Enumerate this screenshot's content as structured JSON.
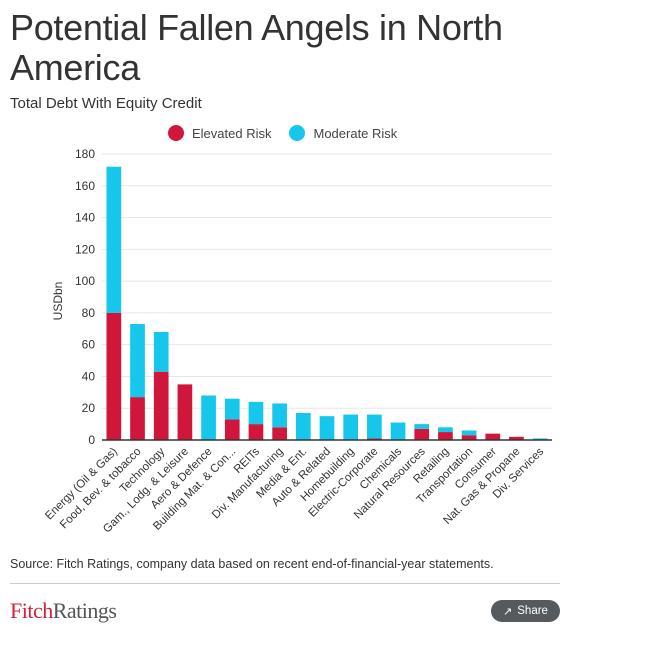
{
  "title": "Potential Fallen Angels in North America",
  "subtitle": "Total Debt With Equity Credit",
  "source": "Source: Fitch Ratings, company data based on recent end-of-financial-year statements.",
  "logo": {
    "brand": "Fitch",
    "suffix": "Ratings"
  },
  "share": {
    "label": "Share",
    "icon": "share-icon"
  },
  "colors": {
    "elevated": "#d0173b",
    "moderate": "#17c6eb",
    "axis": "#333333",
    "grid": "#e6e6e6",
    "text": "#333333"
  },
  "chart_data": {
    "type": "bar",
    "stacked": true,
    "ylabel": "USDbn",
    "ylim": [
      0,
      180
    ],
    "yticks": [
      0,
      20,
      40,
      60,
      80,
      100,
      120,
      140,
      160,
      180
    ],
    "grid": true,
    "legend": "top",
    "categories": [
      "Energy (Oil & Gas)",
      "Food, Bev. & tobacco",
      "Technology",
      "Gam., Lodg. & Leisure",
      "Aero & Defence",
      "Building Mat. & Con...",
      "REITs",
      "Div. Manufacturing",
      "Media & Ent.",
      "Auto & Related",
      "Homebuilding",
      "Electric-Corporate",
      "Chemicals",
      "Natural Resources",
      "Retailing",
      "Transportation",
      "Consumer",
      "Nat. Gas & Propane",
      "Div. Services"
    ],
    "series": [
      {
        "name": "Elevated Risk",
        "values": [
          80,
          27,
          43,
          35,
          0,
          13,
          10,
          8,
          0,
          0,
          0,
          1,
          0,
          7,
          5,
          3,
          4,
          2,
          0
        ]
      },
      {
        "name": "Moderate Risk",
        "values": [
          92,
          46,
          25,
          0,
          28,
          13,
          14,
          15,
          17,
          15,
          16,
          15,
          11,
          3,
          3,
          3,
          0,
          0,
          1
        ]
      }
    ]
  }
}
